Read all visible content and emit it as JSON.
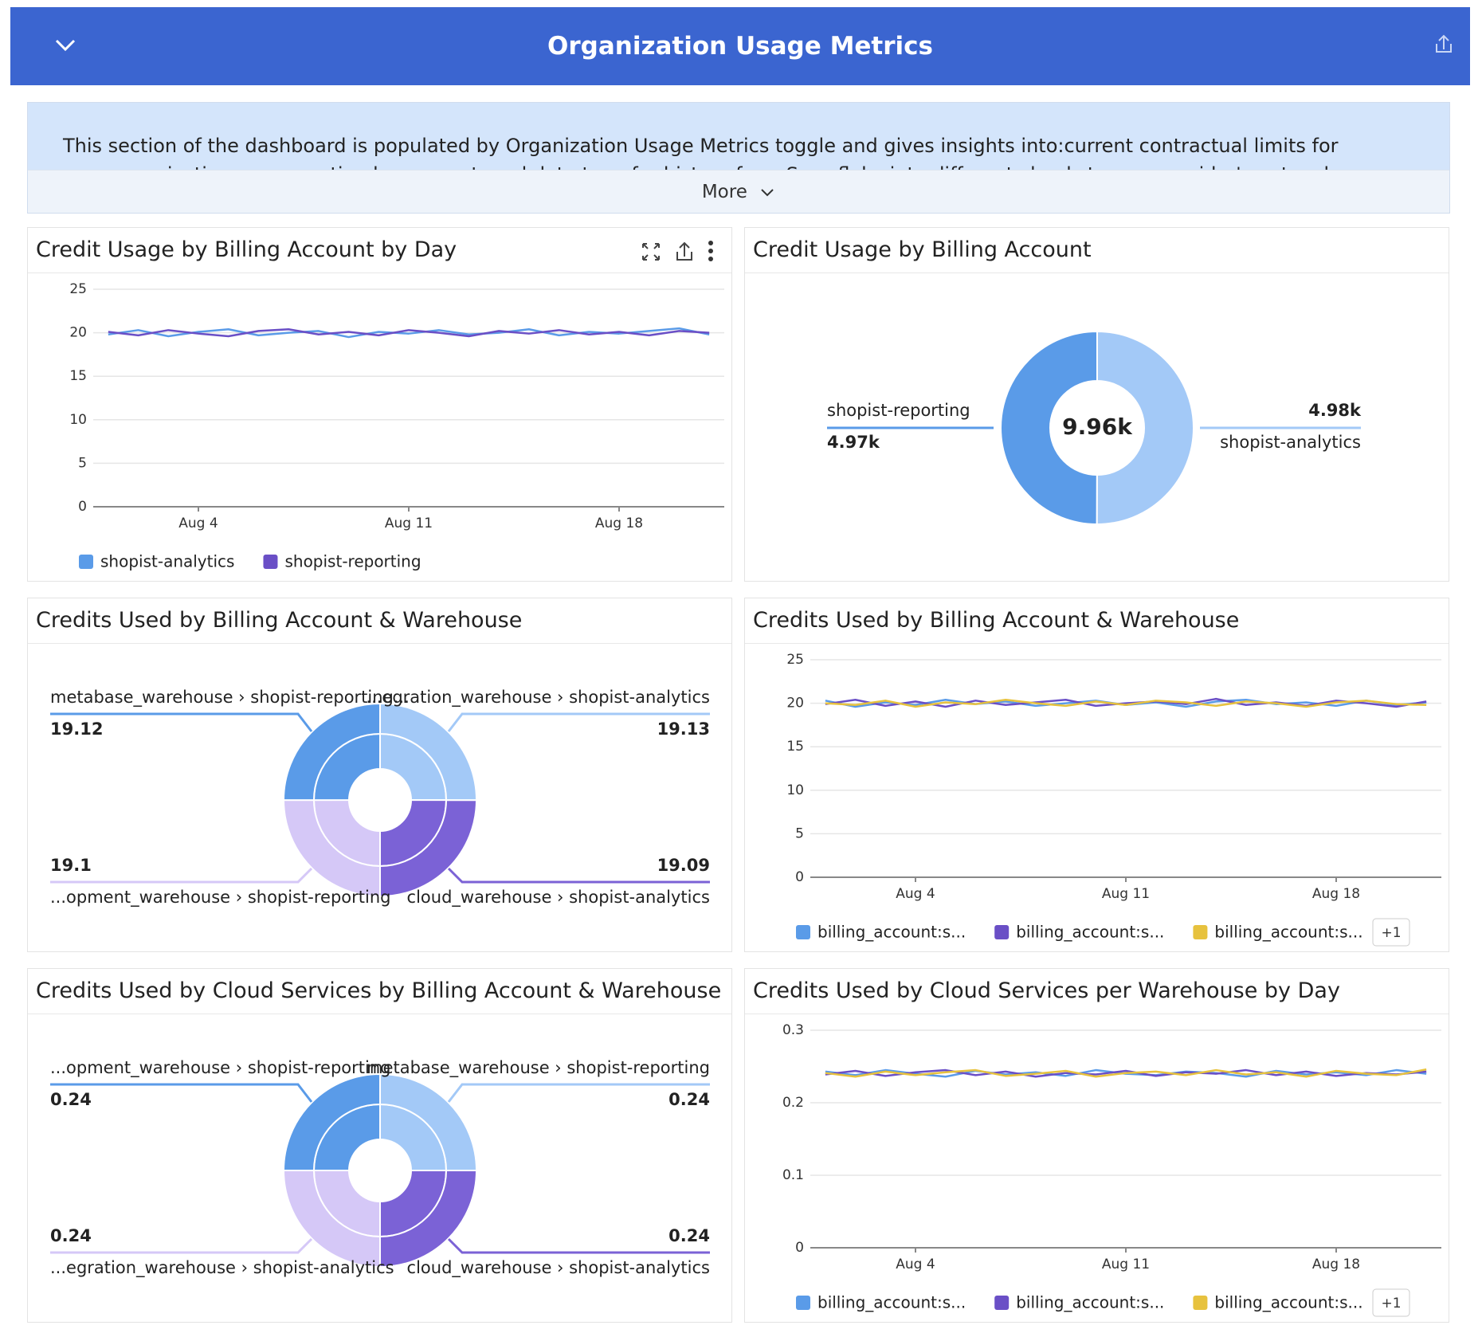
{
  "header": {
    "title": "Organization Usage Metrics"
  },
  "banner": {
    "text": "This section of the dashboard is populated by Organization Usage Metrics toggle and gives insights into:current contractual limits for your organization, consumption by account, and data transfer history from Snowflake into different cloud storage provider's network.",
    "more": "More"
  },
  "chart_data": [
    {
      "type": "line",
      "title": "Credit Usage by Billing Account by Day",
      "x": [
        1,
        2,
        3,
        4,
        5,
        6,
        7,
        8,
        9,
        10,
        11,
        12,
        13,
        14,
        15,
        16,
        17,
        18,
        19,
        20,
        21
      ],
      "xlim": [
        0.5,
        21.5
      ],
      "xticks": [
        {
          "value": 4,
          "label": "Aug 4"
        },
        {
          "value": 11,
          "label": "Aug 11"
        },
        {
          "value": 18,
          "label": "Aug 18"
        }
      ],
      "ylim": [
        0,
        25
      ],
      "yticks": [
        0,
        5,
        10,
        15,
        20,
        25
      ],
      "grid": true,
      "series": [
        {
          "name": "shopist-analytics",
          "color": "#5a9be8",
          "values": [
            19.8,
            20.3,
            19.6,
            20.1,
            20.4,
            19.7,
            20.0,
            20.2,
            19.5,
            20.1,
            19.9,
            20.3,
            19.8,
            20.0,
            20.4,
            19.7,
            20.1,
            19.9,
            20.2,
            20.5,
            19.8
          ]
        },
        {
          "name": "shopist-reporting",
          "color": "#6a4fc6",
          "values": [
            20.1,
            19.7,
            20.3,
            19.9,
            19.6,
            20.2,
            20.4,
            19.8,
            20.1,
            19.7,
            20.3,
            20.0,
            19.6,
            20.2,
            19.9,
            20.3,
            19.8,
            20.1,
            19.7,
            20.2,
            20.0
          ]
        }
      ]
    },
    {
      "type": "donut",
      "title": "Credit Usage by Billing Account",
      "categories": [
        "shopist-analytics",
        "shopist-reporting"
      ],
      "values": [
        4980,
        4970
      ],
      "value_labels": [
        "4.98k",
        "4.97k"
      ],
      "colors": [
        "#a3c9f7",
        "#5a9be8"
      ],
      "center_label": {
        "value": 9960,
        "label": "9.96k"
      }
    },
    {
      "type": "sunburst",
      "title": "Credits Used by Billing Account & Warehouse",
      "categories": [
        "...egration_warehouse › shopist-analytics",
        "cloud_warehouse › shopist-analytics",
        "...opment_warehouse › shopist-reporting",
        "metabase_warehouse › shopist-reporting..."
      ],
      "values": [
        19.13,
        19.09,
        19.1,
        19.12
      ],
      "colors": [
        "#a3c9f7",
        "#7b62d6",
        "#d5c8f7",
        "#5a9be8"
      ]
    },
    {
      "type": "line",
      "title": "Credits Used by Billing Account & Warehouse",
      "x": [
        1,
        2,
        3,
        4,
        5,
        6,
        7,
        8,
        9,
        10,
        11,
        12,
        13,
        14,
        15,
        16,
        17,
        18,
        19,
        20,
        21
      ],
      "xlim": [
        0.5,
        21.5
      ],
      "xticks": [
        {
          "value": 4,
          "label": "Aug 4"
        },
        {
          "value": 11,
          "label": "Aug 11"
        },
        {
          "value": 18,
          "label": "Aug 18"
        }
      ],
      "ylim": [
        0,
        25
      ],
      "yticks": [
        0,
        5,
        10,
        15,
        20,
        25
      ],
      "grid": true,
      "series": [
        {
          "name": "billing_account:s...",
          "color": "#5a9be8",
          "values": [
            20.3,
            19.6,
            20.1,
            19.8,
            20.4,
            19.9,
            20.2,
            19.7,
            20.0,
            20.3,
            19.8,
            20.1,
            19.6,
            20.2,
            20.4,
            19.9,
            20.1,
            19.7,
            20.3,
            19.8,
            20.1
          ]
        },
        {
          "name": "billing_account:s...",
          "color": "#6a4fc6",
          "values": [
            19.9,
            20.4,
            19.7,
            20.2,
            19.6,
            20.3,
            19.8,
            20.1,
            20.4,
            19.7,
            20.0,
            20.2,
            19.9,
            20.5,
            19.8,
            20.1,
            19.7,
            20.3,
            20.0,
            19.6,
            20.2
          ]
        },
        {
          "name": "billing_account:s...",
          "color": "#e7c23e",
          "values": [
            20.0,
            19.8,
            20.3,
            19.6,
            20.1,
            19.9,
            20.4,
            20.0,
            19.7,
            20.2,
            19.8,
            20.3,
            20.1,
            19.7,
            20.2,
            20.0,
            19.6,
            20.1,
            20.3,
            19.9,
            19.8
          ]
        }
      ],
      "legend_more": "+1"
    },
    {
      "type": "sunburst",
      "title": "Credits Used by Cloud Services by Billing Account & Warehouse",
      "categories": [
        "metabase_warehouse › shopist-reporting",
        "cloud_warehouse › shopist-analytics",
        "...egration_warehouse › shopist-analytics",
        "...opment_warehouse › shopist-reporting"
      ],
      "values": [
        0.24,
        0.24,
        0.24,
        0.24
      ],
      "colors": [
        "#a3c9f7",
        "#7b62d6",
        "#d5c8f7",
        "#5a9be8"
      ]
    },
    {
      "type": "line",
      "title": "Credits Used by Cloud Services per Warehouse by Day",
      "x": [
        1,
        2,
        3,
        4,
        5,
        6,
        7,
        8,
        9,
        10,
        11,
        12,
        13,
        14,
        15,
        16,
        17,
        18,
        19,
        20,
        21
      ],
      "xlim": [
        0.5,
        21.5
      ],
      "xticks": [
        {
          "value": 4,
          "label": "Aug 4"
        },
        {
          "value": 11,
          "label": "Aug 11"
        },
        {
          "value": 18,
          "label": "Aug 18"
        }
      ],
      "ylim": [
        0,
        0.3
      ],
      "yticks": [
        0,
        0.1,
        0.2,
        0.3
      ],
      "grid": true,
      "series": [
        {
          "name": "billing_account:s...",
          "color": "#5a9be8",
          "values": [
            0.243,
            0.238,
            0.245,
            0.24,
            0.236,
            0.244,
            0.239,
            0.242,
            0.237,
            0.245,
            0.24,
            0.238,
            0.243,
            0.241,
            0.236,
            0.244,
            0.239,
            0.242,
            0.238,
            0.245,
            0.24
          ]
        },
        {
          "name": "billing_account:s...",
          "color": "#6a4fc6",
          "values": [
            0.239,
            0.244,
            0.237,
            0.242,
            0.245,
            0.238,
            0.243,
            0.236,
            0.241,
            0.239,
            0.244,
            0.237,
            0.242,
            0.24,
            0.245,
            0.238,
            0.243,
            0.237,
            0.241,
            0.239,
            0.243
          ]
        },
        {
          "name": "billing_account:s...",
          "color": "#e7c23e",
          "values": [
            0.241,
            0.236,
            0.243,
            0.238,
            0.242,
            0.245,
            0.237,
            0.24,
            0.244,
            0.236,
            0.241,
            0.243,
            0.238,
            0.245,
            0.239,
            0.242,
            0.236,
            0.244,
            0.24,
            0.238,
            0.246
          ]
        }
      ],
      "legend_more": "+1"
    }
  ]
}
